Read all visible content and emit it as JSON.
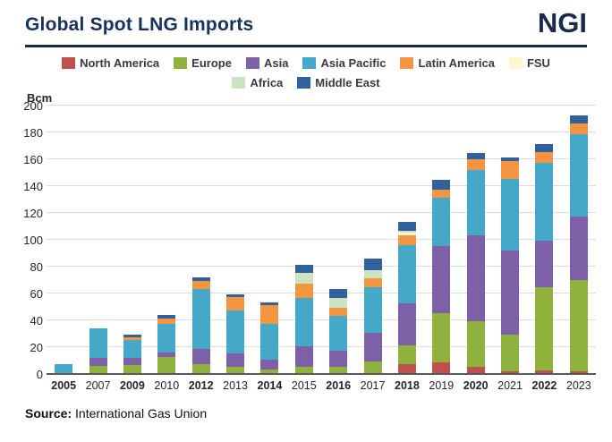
{
  "header": {
    "title": "Global Spot LNG Imports",
    "logo": "NGI"
  },
  "source": {
    "label": "Source:",
    "text": "International Gas Union"
  },
  "colors": {
    "title_navy": "#16325c",
    "logo_navy": "#1b2a4a",
    "gridline": "#dcdcdc",
    "axis": "#595959"
  },
  "chart_data": {
    "type": "bar",
    "stacked": true,
    "title": "Global Spot LNG Imports",
    "unit_label": "Bcm",
    "ylabel": "Bcm",
    "xlabel": "",
    "ylim": [
      0,
      200
    ],
    "ytick_step": 20,
    "grid": true,
    "legend_position": "top",
    "categories": [
      "2005",
      "2007",
      "2009",
      "2010",
      "2012",
      "2013",
      "2014",
      "2015",
      "2016",
      "2017",
      "2018",
      "2019",
      "2020",
      "2021",
      "2022",
      "2023"
    ],
    "series": [
      {
        "name": "North America",
        "color": "#c0504d",
        "values": [
          0,
          0,
          0,
          0,
          0,
          0,
          0,
          0,
          0,
          0,
          7,
          8,
          4.5,
          1.5,
          2,
          1.5
        ]
      },
      {
        "name": "Europe",
        "color": "#8fb13e",
        "values": [
          0,
          5.5,
          6,
          12,
          7,
          5,
          2.5,
          4.5,
          5,
          9,
          14,
          36.5,
          34.5,
          27,
          62,
          68
        ]
      },
      {
        "name": "Asia",
        "color": "#7d60a5",
        "values": [
          0,
          6,
          5.5,
          3.5,
          11,
          9.5,
          7.5,
          15.5,
          11.5,
          21,
          31,
          50,
          63.5,
          63,
          35,
          47
        ]
      },
      {
        "name": "Asia Pacific",
        "color": "#46a8c8",
        "values": [
          6.5,
          22,
          13,
          21,
          45,
          32,
          27,
          36,
          26,
          34,
          43.5,
          36.5,
          49,
          53.5,
          57.5,
          61.5
        ]
      },
      {
        "name": "Latin America",
        "color": "#f49542",
        "values": [
          0,
          0,
          2.5,
          4.5,
          6,
          10,
          14,
          10.5,
          6,
          6.5,
          7.5,
          6,
          8,
          13,
          8.5,
          8
        ]
      },
      {
        "name": "FSU",
        "color": "#fbf7d0",
        "values": [
          0,
          0,
          0,
          0,
          0,
          0,
          0,
          0,
          0,
          0,
          1.5,
          0,
          0,
          0,
          0,
          0
        ]
      },
      {
        "name": "Africa",
        "color": "#cbe3c0",
        "values": [
          0,
          0,
          0,
          0,
          0,
          0,
          0,
          8.5,
          7.5,
          6.5,
          1.5,
          0,
          0,
          0,
          0,
          0
        ]
      },
      {
        "name": "Middle East",
        "color": "#33619e",
        "values": [
          0,
          0,
          2,
          2.5,
          2.5,
          2.5,
          1.5,
          6,
          6.5,
          8.5,
          6.5,
          7,
          4.5,
          3,
          5.5,
          6
        ]
      }
    ]
  }
}
